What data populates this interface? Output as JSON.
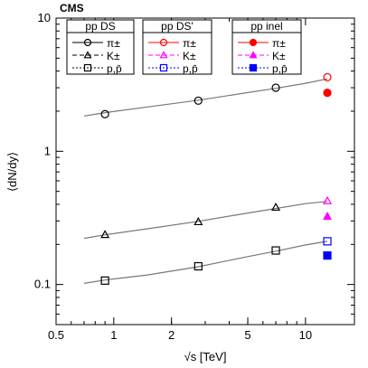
{
  "chart_data": {
    "type": "scatter",
    "title": "CMS",
    "xlabel": "√s [TeV]",
    "ylabel": "⟨dN/dy⟩",
    "xscale": "log",
    "yscale": "log",
    "xlim": [
      0.5,
      18
    ],
    "ylim": [
      0.05,
      10
    ],
    "xticks": [
      0.5,
      1,
      2,
      5,
      10
    ],
    "xtick_labels": [
      "0.5",
      "1",
      "2",
      "5",
      "10"
    ],
    "yticks": [
      0.1,
      1,
      10
    ],
    "ytick_labels": [
      "0.1",
      "1",
      "10"
    ],
    "grid": false,
    "legend_groups": [
      {
        "title": "pp DS",
        "color": "#000000",
        "entries": [
          "π±",
          "K±",
          "p,p̄"
        ]
      },
      {
        "title": "pp DS'",
        "colors": [
          "#ff0000",
          "#ff00ff",
          "#0000ff"
        ],
        "entries": [
          "π±",
          "K±",
          "p,p̄"
        ]
      },
      {
        "title": "pp inel",
        "colors": [
          "#ff0000",
          "#ff00ff",
          "#0000ff"
        ],
        "entries": [
          "π±",
          "K±",
          "p,p̄"
        ]
      }
    ],
    "series": [
      {
        "group": "pp DS",
        "particle": "π±",
        "marker": "circle-open",
        "color": "#000000",
        "x": [
          0.9,
          2.76,
          7.0
        ],
        "y": [
          1.9,
          2.4,
          3.0
        ]
      },
      {
        "group": "pp DS",
        "particle": "K±",
        "marker": "triangle-open",
        "color": "#000000",
        "x": [
          0.9,
          2.76,
          7.0
        ],
        "y": [
          0.237,
          0.296,
          0.38
        ]
      },
      {
        "group": "pp DS",
        "particle": "p,p̄",
        "marker": "square-open",
        "color": "#000000",
        "x": [
          0.9,
          2.76,
          7.0
        ],
        "y": [
          0.107,
          0.137,
          0.18
        ]
      },
      {
        "group": "pp DS'",
        "particle": "π±",
        "marker": "circle-open",
        "color": "#ff0000",
        "x": [
          13.0
        ],
        "y": [
          3.6
        ]
      },
      {
        "group": "pp DS'",
        "particle": "K±",
        "marker": "triangle-open",
        "color": "#ff00ff",
        "x": [
          13.0
        ],
        "y": [
          0.425
        ]
      },
      {
        "group": "pp DS'",
        "particle": "p,p̄",
        "marker": "square-open",
        "color": "#0000ff",
        "x": [
          13.0
        ],
        "y": [
          0.211
        ]
      },
      {
        "group": "pp inel",
        "particle": "π±",
        "marker": "circle-filled",
        "color": "#ff0000",
        "x": [
          13.0
        ],
        "y": [
          2.75
        ]
      },
      {
        "group": "pp inel",
        "particle": "K±",
        "marker": "triangle-filled",
        "color": "#ff00ff",
        "x": [
          13.0
        ],
        "y": [
          0.325
        ]
      },
      {
        "group": "pp inel",
        "particle": "p,p̄",
        "marker": "square-filled",
        "color": "#0000ff",
        "x": [
          13.0
        ],
        "y": [
          0.165
        ]
      }
    ],
    "fits": [
      {
        "particle": "π±",
        "color": "#777777",
        "x": [
          0.7,
          0.9,
          1.5,
          2.76,
          5.0,
          7.0,
          10.0,
          13.0
        ],
        "y": [
          1.84,
          1.95,
          2.15,
          2.42,
          2.76,
          2.97,
          3.24,
          3.5
        ]
      },
      {
        "particle": "K±",
        "color": "#777777",
        "x": [
          0.7,
          0.9,
          1.5,
          2.76,
          5.0,
          7.0,
          10.0,
          13.0
        ],
        "y": [
          0.222,
          0.236,
          0.262,
          0.298,
          0.344,
          0.372,
          0.405,
          0.42
        ]
      },
      {
        "particle": "p,p̄",
        "color": "#777777",
        "x": [
          0.7,
          0.9,
          1.5,
          2.76,
          5.0,
          7.0,
          10.0,
          13.0
        ],
        "y": [
          0.102,
          0.108,
          0.118,
          0.136,
          0.162,
          0.178,
          0.198,
          0.211
        ]
      }
    ]
  }
}
